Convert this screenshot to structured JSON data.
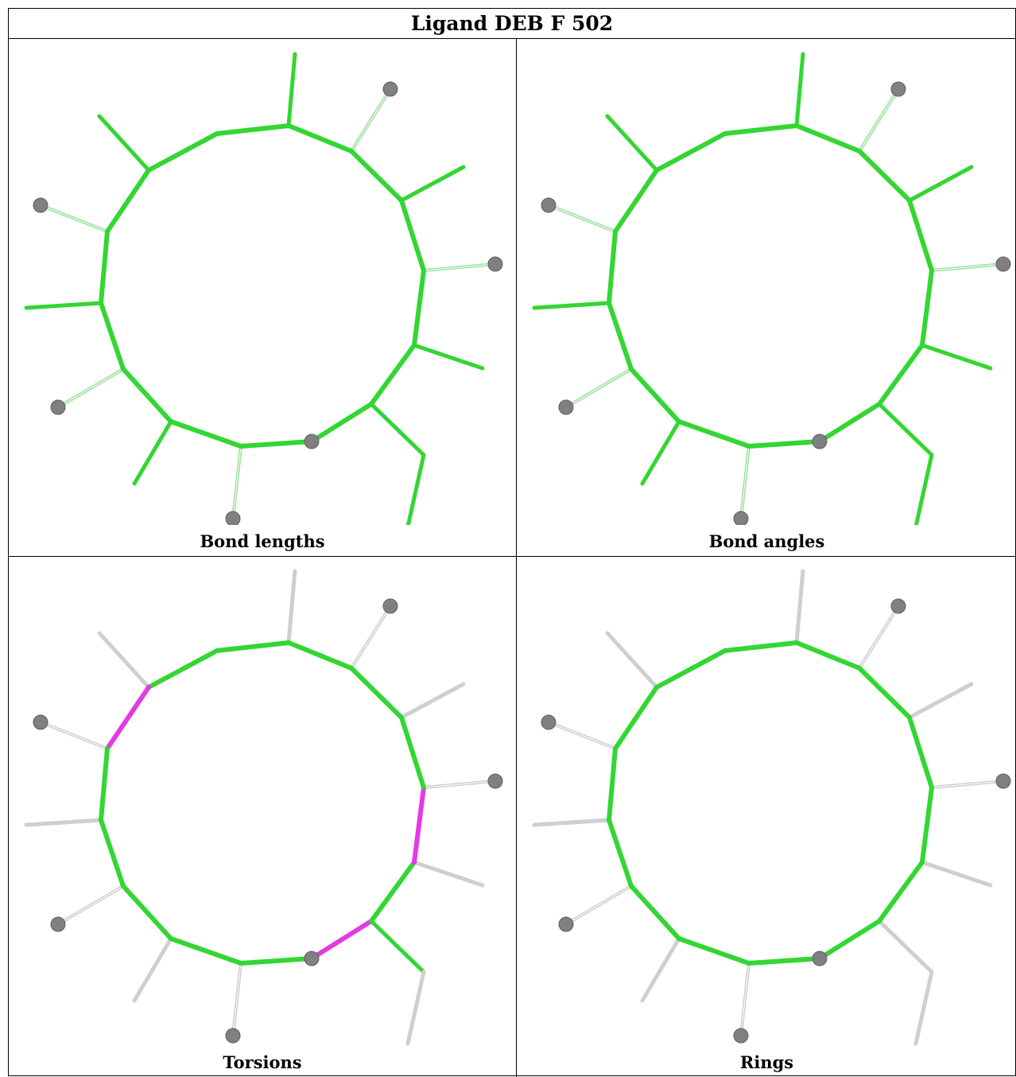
{
  "title": "Ligand DEB F 502",
  "panels": [
    {
      "caption": "Bond lengths",
      "ring": "green",
      "subs": "green",
      "highlight": []
    },
    {
      "caption": "Bond angles",
      "ring": "green",
      "subs": "green",
      "highlight": []
    },
    {
      "caption": "Torsions",
      "ring": "green",
      "subs": "grey",
      "highlight": [
        2,
        8,
        10
      ],
      "ethyl_first": "green"
    },
    {
      "caption": "Rings",
      "ring": "green",
      "subs": "grey",
      "highlight": []
    }
  ],
  "colors": {
    "green": "#33d633",
    "grey": "#cfcfcf",
    "magenta": "#e43ae4",
    "atom": "#808080"
  }
}
